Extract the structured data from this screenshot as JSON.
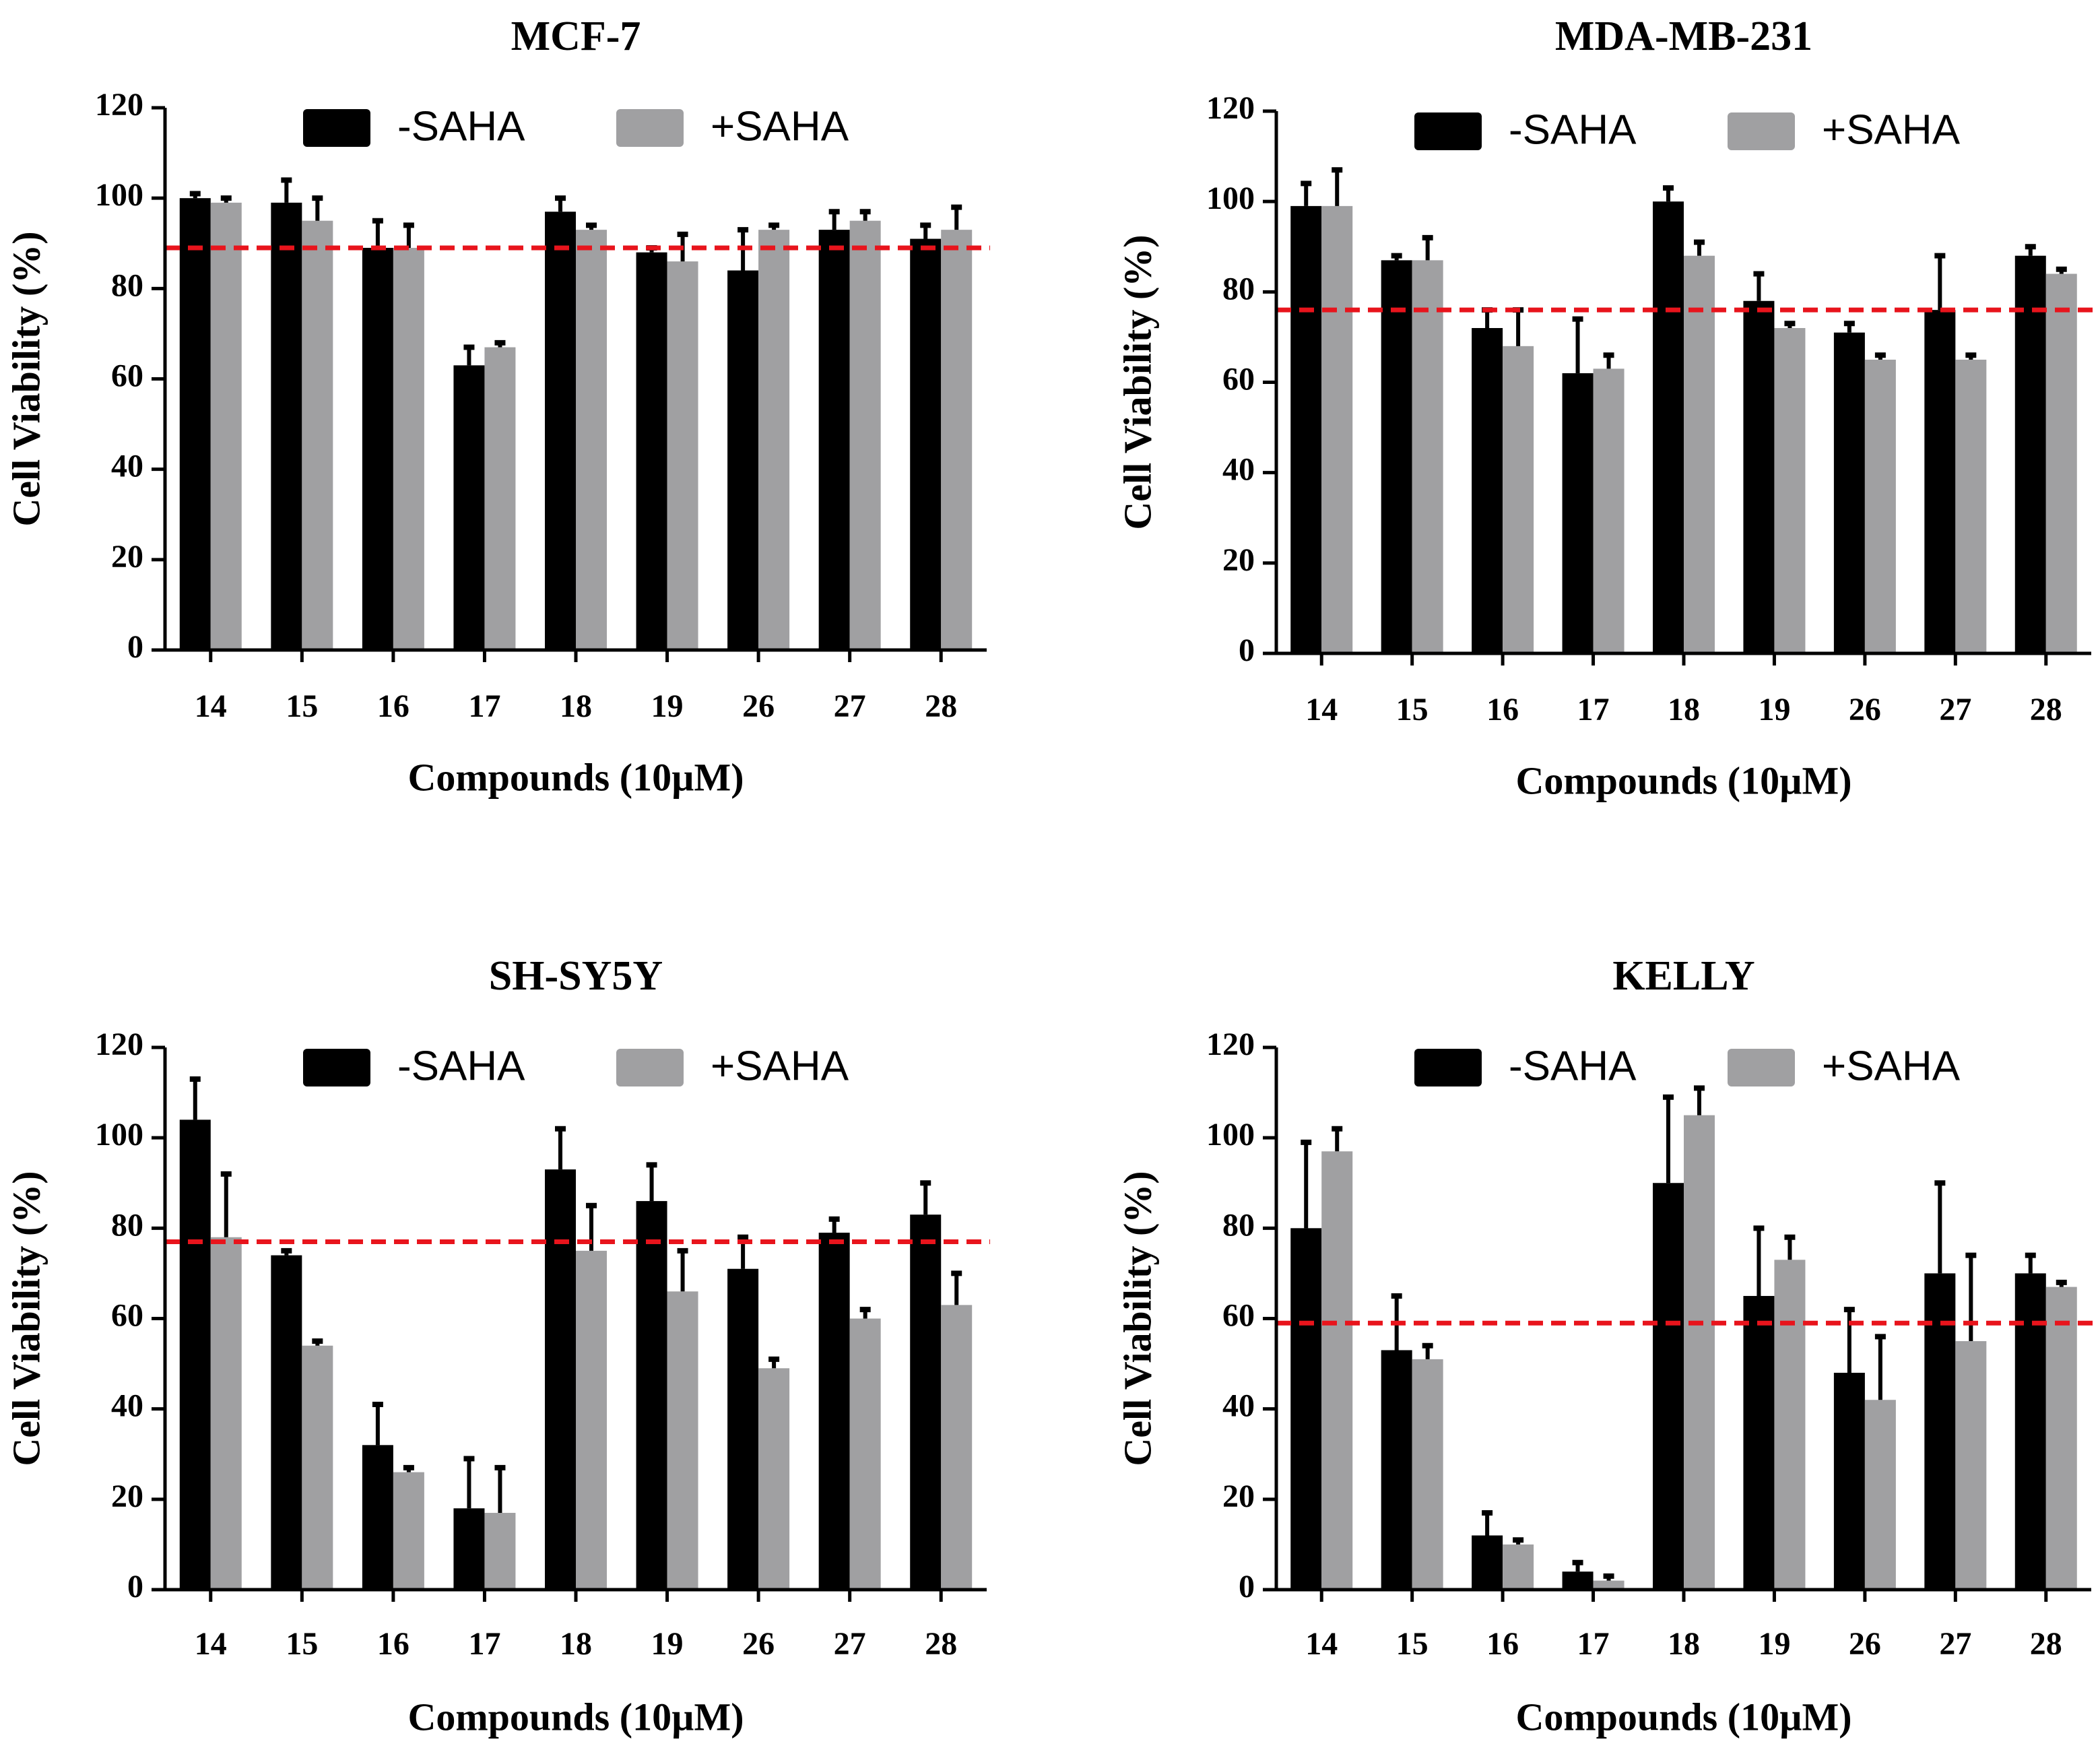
{
  "chart_data": [
    {
      "type": "bar",
      "title": "MCF-7",
      "xlabel": "Compounds (10µM)",
      "ylabel": "Cell Viability (%)",
      "ylim": [
        0,
        120
      ],
      "yticks": [
        0,
        20,
        40,
        60,
        80,
        100,
        120
      ],
      "categories": [
        "14",
        "15",
        "16",
        "17",
        "18",
        "19",
        "26",
        "27",
        "28"
      ],
      "series": [
        {
          "name": "-SAHA",
          "color": "#000000",
          "values": [
            100,
            99,
            89,
            63,
            97,
            88,
            84,
            93,
            91
          ],
          "errors": [
            1,
            5,
            6,
            4,
            3,
            1,
            9,
            4,
            3
          ]
        },
        {
          "name": "+SAHA",
          "color": "#a0a0a2",
          "values": [
            99,
            95,
            89,
            67,
            93,
            86,
            93,
            95,
            93
          ],
          "errors": [
            1,
            5,
            5,
            1,
            1,
            6,
            1,
            2,
            5
          ]
        }
      ],
      "reference_line": {
        "value": 89,
        "color": "#e8141c"
      },
      "legend_position": "top"
    },
    {
      "type": "bar",
      "title": "MDA-MB-231",
      "xlabel": "Compounds (10µM)",
      "ylabel": "Cell Viability (%)",
      "ylim": [
        0,
        120
      ],
      "yticks": [
        0,
        20,
        40,
        60,
        80,
        100,
        120
      ],
      "categories": [
        "14",
        "15",
        "16",
        "17",
        "18",
        "19",
        "26",
        "27",
        "28"
      ],
      "series": [
        {
          "name": "-SAHA",
          "color": "#000000",
          "values": [
            99,
            87,
            72,
            62,
            100,
            78,
            71,
            76,
            88
          ],
          "errors": [
            5,
            1,
            4,
            12,
            3,
            6,
            2,
            12,
            2
          ]
        },
        {
          "name": "+SAHA",
          "color": "#a0a0a2",
          "values": [
            99,
            87,
            68,
            63,
            88,
            72,
            65,
            65,
            84
          ],
          "errors": [
            8,
            5,
            8,
            3,
            3,
            1,
            1,
            1,
            1
          ]
        }
      ],
      "reference_line": {
        "value": 76,
        "color": "#e8141c"
      },
      "legend_position": "top"
    },
    {
      "type": "bar",
      "title": "SH-SY5Y",
      "xlabel": "Compounds (10µM)",
      "ylabel": "Cell Viability (%)",
      "ylim": [
        0,
        120
      ],
      "yticks": [
        0,
        20,
        40,
        60,
        80,
        100,
        120
      ],
      "categories": [
        "14",
        "15",
        "16",
        "17",
        "18",
        "19",
        "26",
        "27",
        "28"
      ],
      "series": [
        {
          "name": "-SAHA",
          "color": "#000000",
          "values": [
            104,
            74,
            32,
            18,
            93,
            86,
            71,
            79,
            83
          ],
          "errors": [
            9,
            1,
            9,
            11,
            9,
            8,
            7,
            3,
            7
          ]
        },
        {
          "name": "+SAHA",
          "color": "#a0a0a2",
          "values": [
            78,
            54,
            26,
            17,
            75,
            66,
            49,
            60,
            63
          ],
          "errors": [
            14,
            1,
            1,
            10,
            10,
            9,
            2,
            2,
            7
          ]
        }
      ],
      "reference_line": {
        "value": 77,
        "color": "#e8141c"
      },
      "legend_position": "top"
    },
    {
      "type": "bar",
      "title": "KELLY",
      "xlabel": "Compounds (10µM)",
      "ylabel": "Cell Viability (%)",
      "ylim": [
        0,
        120
      ],
      "yticks": [
        0,
        20,
        40,
        60,
        80,
        100,
        120
      ],
      "categories": [
        "14",
        "15",
        "16",
        "17",
        "18",
        "19",
        "26",
        "27",
        "28"
      ],
      "series": [
        {
          "name": "-SAHA",
          "color": "#000000",
          "values": [
            80,
            53,
            12,
            4,
            90,
            65,
            48,
            70,
            70
          ],
          "errors": [
            19,
            12,
            5,
            2,
            19,
            15,
            14,
            20,
            4
          ]
        },
        {
          "name": "+SAHA",
          "color": "#a0a0a2",
          "values": [
            97,
            51,
            10,
            2,
            105,
            73,
            42,
            55,
            67
          ],
          "errors": [
            5,
            3,
            1,
            1,
            6,
            5,
            14,
            19,
            1
          ]
        }
      ],
      "reference_line": {
        "value": 59,
        "color": "#e8141c"
      },
      "legend_position": "top"
    }
  ]
}
